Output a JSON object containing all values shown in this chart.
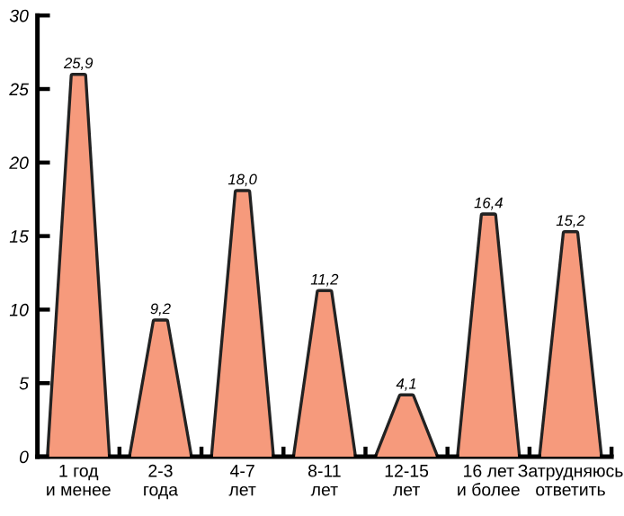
{
  "chart_data": {
    "type": "bar",
    "categories": [
      "1 год\nи менее",
      "2-3\nгода",
      "4-7\nлет",
      "8-11\nлет",
      "12-15\nлет",
      "16 лет\nи более",
      "Затрудняюсь\nответить"
    ],
    "values": [
      25.9,
      9.2,
      18.0,
      11.2,
      4.1,
      16.4,
      15.2
    ],
    "value_labels": [
      "25,9",
      "9,2",
      "18,0",
      "11,2",
      "4,1",
      "16,4",
      "15,2"
    ],
    "color": "#f69a7c",
    "ylim": [
      0,
      30
    ],
    "yticks": [
      0,
      5,
      10,
      15,
      20,
      25,
      30
    ],
    "grid": false
  }
}
